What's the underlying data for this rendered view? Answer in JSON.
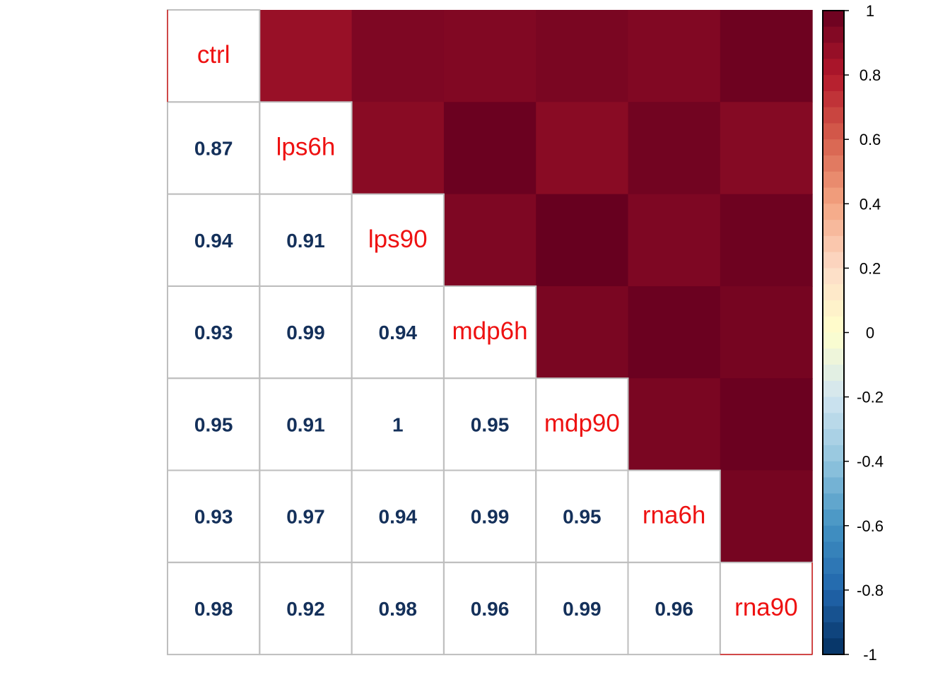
{
  "chart_data": {
    "type": "heatmap",
    "variables": [
      "ctrl",
      "lps6h",
      "lps90",
      "mdp6h",
      "mdp90",
      "rna6h",
      "rna90"
    ],
    "matrix": [
      [
        1.0,
        0.87,
        0.94,
        0.93,
        0.95,
        0.93,
        0.98
      ],
      [
        0.87,
        1.0,
        0.91,
        0.99,
        0.91,
        0.97,
        0.92
      ],
      [
        0.94,
        0.91,
        1.0,
        0.94,
        1.0,
        0.94,
        0.98
      ],
      [
        0.93,
        0.99,
        0.94,
        1.0,
        0.95,
        0.99,
        0.96
      ],
      [
        0.95,
        0.91,
        1.0,
        0.95,
        1.0,
        0.95,
        0.99
      ],
      [
        0.93,
        0.97,
        0.94,
        0.99,
        0.95,
        1.0,
        0.96
      ],
      [
        0.98,
        0.92,
        0.98,
        0.96,
        0.99,
        0.96,
        1.0
      ]
    ],
    "lower_labels": [
      [
        "0.87"
      ],
      [
        "0.94",
        "0.91"
      ],
      [
        "0.93",
        "0.99",
        "0.94"
      ],
      [
        "0.95",
        "0.91",
        "1",
        "0.95"
      ],
      [
        "0.93",
        "0.97",
        "0.94",
        "0.99",
        "0.95"
      ],
      [
        "0.98",
        "0.92",
        "0.98",
        "0.96",
        "0.99",
        "0.96"
      ]
    ],
    "lower_method": "number",
    "upper_method": "color",
    "diagonal": "variable names",
    "colorbar": {
      "range": [
        -1,
        1
      ],
      "ticks": [
        1,
        0.8,
        0.6,
        0.4,
        0.2,
        0,
        -0.2,
        -0.4,
        -0.6,
        -0.8,
        -1
      ],
      "tick_labels": [
        "1",
        "0.8",
        "0.6",
        "0.4",
        "0.2",
        "0",
        "-0.2",
        "-0.4",
        "-0.6",
        "-0.8",
        "-1"
      ],
      "position": "right"
    },
    "colors": {
      "palette": [
        "#053061",
        "#2166AC",
        "#4393C3",
        "#92C5DE",
        "#D1E5F0",
        "#FFFFCC",
        "#FDDBC7",
        "#F4A582",
        "#D6604D",
        "#B2182B",
        "#67001F"
      ],
      "value_text": "#14305A",
      "diag_text": "#EE1111",
      "grid": "#BEBEBE"
    }
  }
}
